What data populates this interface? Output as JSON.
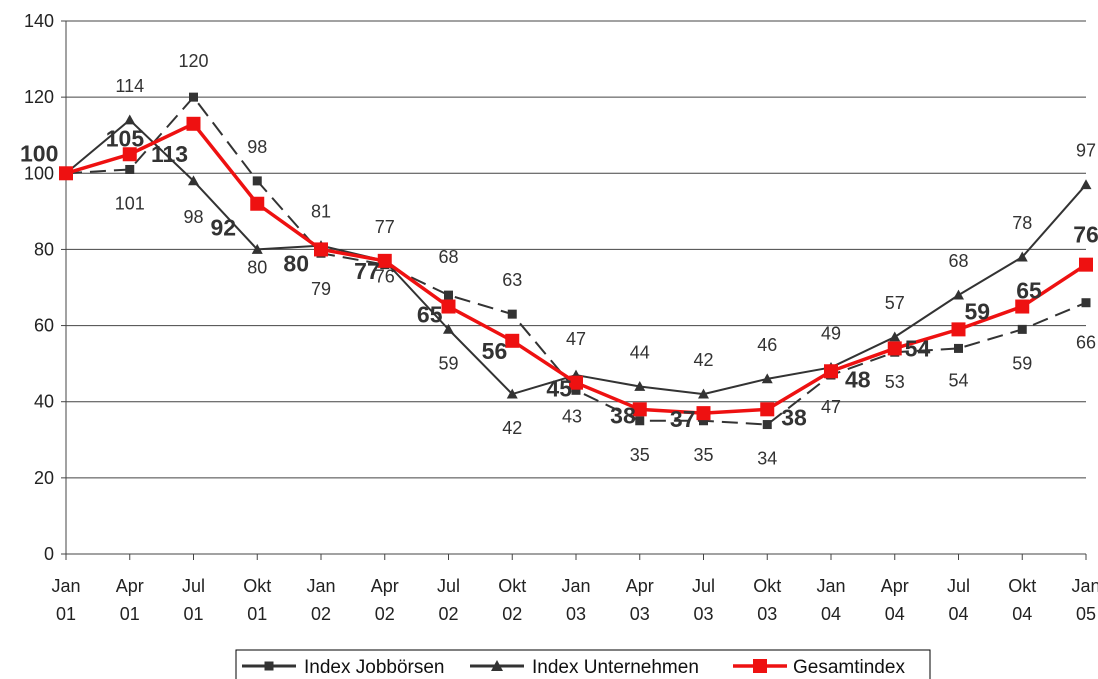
{
  "chart_data": {
    "type": "line",
    "categories": [
      [
        "Jan",
        "01"
      ],
      [
        "Apr",
        "01"
      ],
      [
        "Jul",
        "01"
      ],
      [
        "Okt",
        "01"
      ],
      [
        "Jan",
        "02"
      ],
      [
        "Apr",
        "02"
      ],
      [
        "Jul",
        "02"
      ],
      [
        "Okt",
        "02"
      ],
      [
        "Jan",
        "03"
      ],
      [
        "Apr",
        "03"
      ],
      [
        "Jul",
        "03"
      ],
      [
        "Okt",
        "03"
      ],
      [
        "Jan",
        "04"
      ],
      [
        "Apr",
        "04"
      ],
      [
        "Jul",
        "04"
      ],
      [
        "Okt",
        "04"
      ],
      [
        "Jan",
        "05"
      ]
    ],
    "ylim": [
      0,
      140
    ],
    "yticks": [
      0,
      20,
      40,
      60,
      80,
      100,
      120,
      140
    ],
    "grid": true,
    "legend_position": "bottom",
    "series": [
      {
        "name": "Index Jobbörsen",
        "color": "#333333",
        "style": "dashed",
        "marker": "square",
        "values": [
          100,
          101,
          120,
          98,
          79,
          76,
          68,
          63,
          43,
          35,
          35,
          34,
          47,
          53,
          54,
          59,
          66
        ],
        "labels": [
          "",
          "101",
          "120",
          "98",
          "79",
          "76",
          "68",
          "63",
          "43",
          "35",
          "35",
          "34",
          "47",
          "53",
          "54",
          "59",
          "66"
        ]
      },
      {
        "name": "Index Unternehmen",
        "color": "#333333",
        "style": "solid",
        "marker": "triangle",
        "values": [
          100,
          114,
          98,
          80,
          81,
          77,
          59,
          42,
          47,
          44,
          42,
          46,
          49,
          57,
          68,
          78,
          97
        ],
        "labels": [
          "",
          "114",
          "98",
          "80",
          "81",
          "77",
          "59",
          "42",
          "47",
          "44",
          "42",
          "46",
          "49",
          "57",
          "68",
          "78",
          "97"
        ]
      },
      {
        "name": "Gesamtindex",
        "color": "#ee1111",
        "style": "solid",
        "marker": "square",
        "values": [
          100,
          105,
          113,
          92,
          80,
          77,
          65,
          56,
          45,
          38,
          37,
          38,
          48,
          54,
          59,
          65,
          76
        ],
        "labels": [
          "100",
          "105",
          "113",
          "92",
          "80",
          "77",
          "65",
          "56",
          "45",
          "38",
          "37",
          "38",
          "48",
          "54",
          "59",
          "65",
          "76"
        ]
      }
    ]
  }
}
